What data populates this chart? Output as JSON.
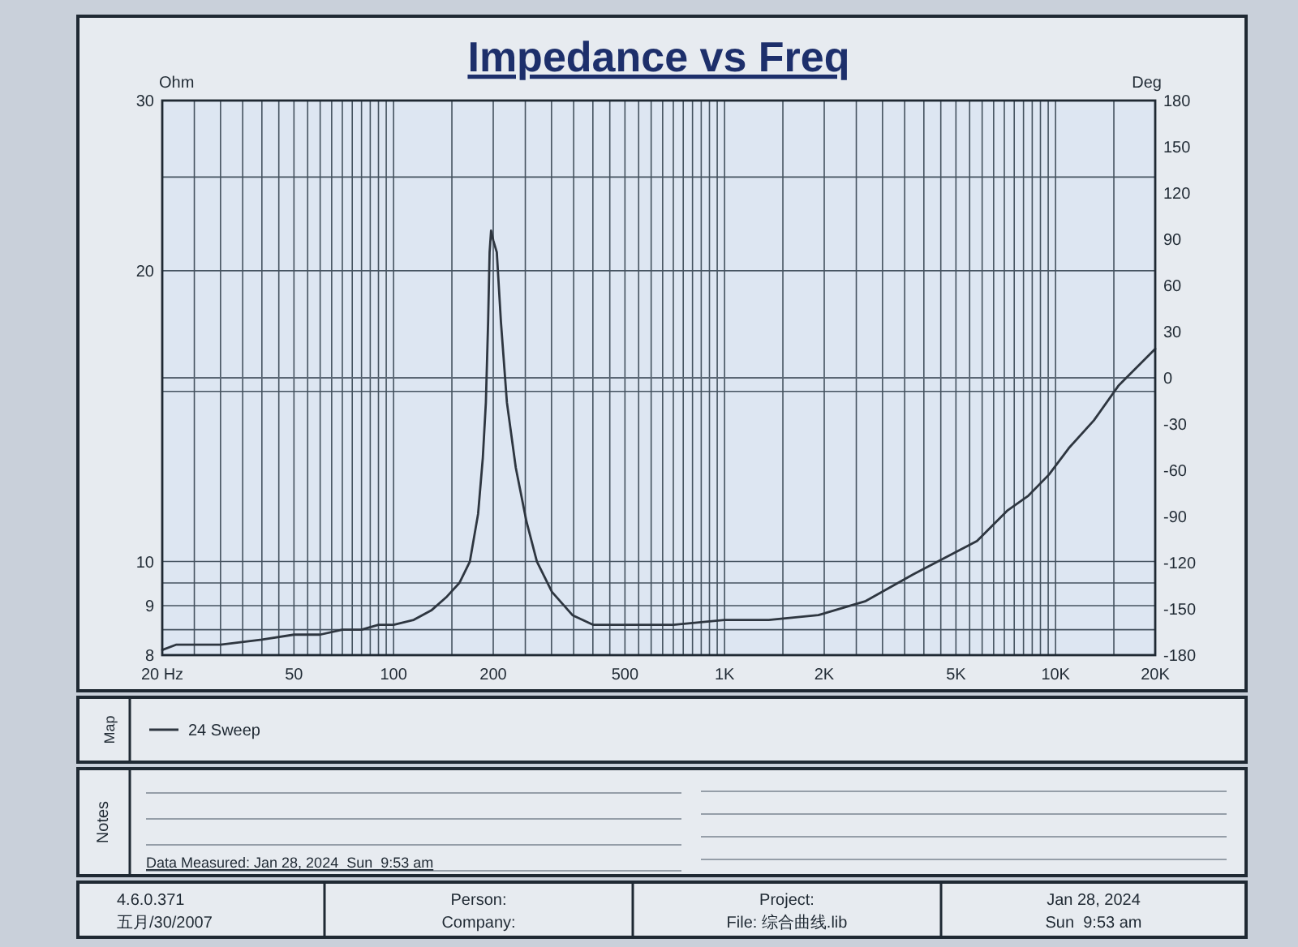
{
  "chart_data": {
    "type": "line",
    "title": "Impedance vs Freq",
    "ylabel": "Ohm",
    "y2label": "Deg",
    "legend_title": "Map",
    "x": [
      20,
      22,
      25,
      30,
      40,
      50,
      60,
      70,
      80,
      90,
      100,
      115,
      130,
      145,
      158,
      170,
      180,
      186,
      190,
      193,
      195,
      197,
      200,
      205,
      211,
      220,
      234,
      252,
      271,
      301,
      347,
      400,
      480,
      570,
      700,
      1000,
      1100,
      1360,
      1920,
      2670,
      3720,
      5790,
      7170,
      8280,
      9550,
      10960,
      13060,
      15480,
      20000
    ],
    "series": [
      {
        "name": "24 Sweep",
        "color": "#2e3640",
        "values": [
          8.1,
          8.2,
          8.2,
          8.2,
          8.3,
          8.4,
          8.4,
          8.5,
          8.5,
          8.6,
          8.6,
          8.7,
          8.9,
          9.2,
          9.5,
          10,
          11.2,
          12.8,
          14.6,
          17.7,
          20.9,
          22,
          21.5,
          20.9,
          17.7,
          14.6,
          12.5,
          11,
          10,
          9.3,
          8.8,
          8.6,
          8.6,
          8.6,
          8.6,
          8.7,
          8.7,
          8.7,
          8.8,
          9.1,
          9.7,
          10.5,
          11.3,
          11.7,
          12.3,
          13.1,
          14,
          15.2,
          16.6
        ]
      }
    ],
    "xlim": [
      20,
      20000
    ],
    "xticks": [
      {
        "value": 20,
        "label": "20 Hz"
      },
      {
        "value": 25,
        "label": null
      },
      {
        "value": 30,
        "label": null
      },
      {
        "value": 35,
        "label": null
      },
      {
        "value": 40,
        "label": null
      },
      {
        "value": 45,
        "label": null
      },
      50,
      {
        "value": 55,
        "label": null
      },
      {
        "value": 60,
        "label": null
      },
      {
        "value": 65,
        "label": null
      },
      {
        "value": 70,
        "label": null
      },
      {
        "value": 75,
        "label": null
      },
      {
        "value": 80,
        "label": null
      },
      {
        "value": 85,
        "label": null
      },
      {
        "value": 90,
        "label": null
      },
      {
        "value": 95,
        "label": null
      },
      100,
      {
        "value": 150,
        "label": null
      },
      200,
      {
        "value": 250,
        "label": null
      },
      {
        "value": 300,
        "label": null
      },
      {
        "value": 350,
        "label": null
      },
      {
        "value": 400,
        "label": null
      },
      {
        "value": 450,
        "label": null
      },
      500,
      {
        "value": 550,
        "label": null
      },
      {
        "value": 600,
        "label": null
      },
      {
        "value": 650,
        "label": null
      },
      {
        "value": 700,
        "label": null
      },
      {
        "value": 750,
        "label": null
      },
      {
        "value": 800,
        "label": null
      },
      {
        "value": 850,
        "label": null
      },
      {
        "value": 900,
        "label": null
      },
      {
        "value": 950,
        "label": null
      },
      {
        "value": 1000,
        "label": "1K"
      },
      {
        "value": 1500,
        "label": null
      },
      {
        "value": 2000,
        "label": "2K"
      },
      {
        "value": 2500,
        "label": null
      },
      {
        "value": 3000,
        "label": null
      },
      {
        "value": 3500,
        "label": null
      },
      {
        "value": 4000,
        "label": null
      },
      {
        "value": 4500,
        "label": null
      },
      {
        "value": 5000,
        "label": "5K"
      },
      {
        "value": 5500,
        "label": null
      },
      {
        "value": 6000,
        "label": null
      },
      {
        "value": 6500,
        "label": null
      },
      {
        "value": 7000,
        "label": null
      },
      {
        "value": 7500,
        "label": null
      },
      {
        "value": 8000,
        "label": null
      },
      {
        "value": 8500,
        "label": null
      },
      {
        "value": 9000,
        "label": null
      },
      {
        "value": 9500,
        "label": null
      },
      {
        "value": 10000,
        "label": "10K"
      },
      {
        "value": 15000,
        "label": null
      },
      {
        "value": 20000,
        "label": "20K"
      }
    ],
    "ylim": [
      8,
      30
    ],
    "yticks": [
      8,
      {
        "value": 8.5,
        "label": null
      },
      9,
      {
        "value": 9.5,
        "label": null
      },
      10,
      {
        "value": 15,
        "label": null
      },
      20,
      {
        "value": 25,
        "label": null
      },
      30
    ],
    "y2lim": [
      -180,
      180
    ],
    "y2ticks": [
      -180,
      -150,
      -120,
      -90,
      -60,
      -30,
      0,
      30,
      60,
      90,
      120,
      150,
      180
    ],
    "log": "xy",
    "grid": true,
    "legend": "bottom",
    "ref_lines": [
      {
        "axis": "y2",
        "value": 0,
        "color": "#5b6775"
      }
    ],
    "annotations": [
      "Notes",
      "Data Measured: Jan 28, 2024  Sun  9:53 am",
      "4.6.0.371",
      "五月/30/2007",
      "Person:",
      "Company:",
      "Project:",
      "File: 综合曲线.lib",
      "Jan 28, 2024",
      "Sun  9:53 am"
    ]
  }
}
